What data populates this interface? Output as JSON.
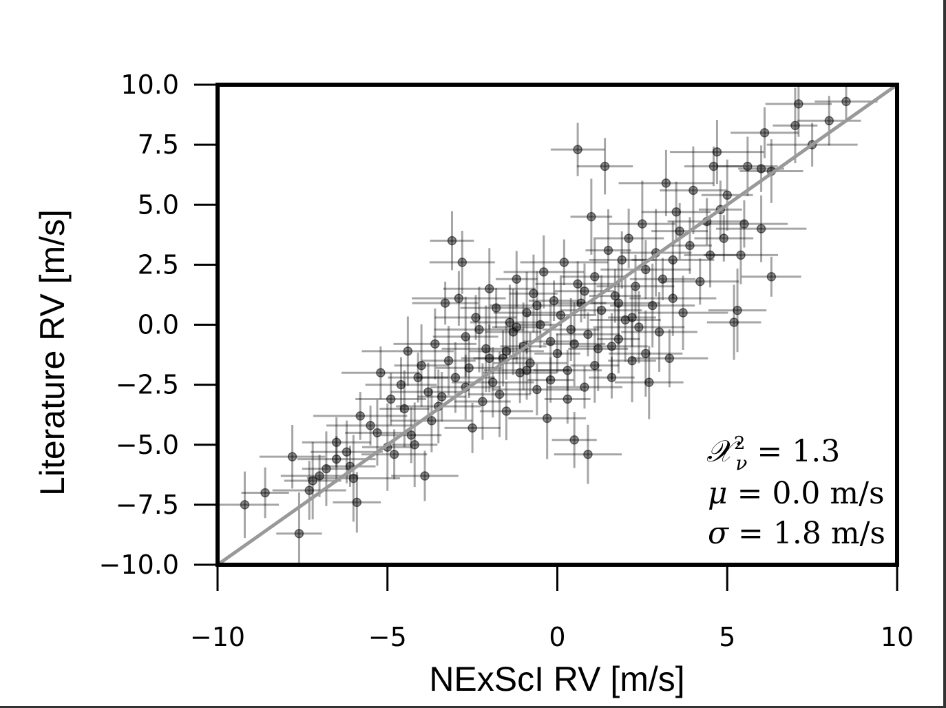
{
  "chart_data": {
    "type": "scatter",
    "title": "",
    "xlabel": "NExScI RV [m/s]",
    "ylabel": "Literature RV [m/s]",
    "xlim": [
      -10,
      10
    ],
    "ylim": [
      -10,
      10
    ],
    "xticks": [
      -10,
      -5,
      0,
      5,
      10
    ],
    "xtick_labels": [
      "−10",
      "−5",
      "0",
      "5",
      "10"
    ],
    "yticks": [
      10,
      7.5,
      5,
      2.5,
      0,
      -2.5,
      -5,
      -7.5,
      -10
    ],
    "ytick_labels": [
      "10.0",
      "7.5",
      "5.0",
      "2.5",
      "0.0",
      "−2.5",
      "−5.0",
      "−7.5",
      "−10.0"
    ],
    "grid": false,
    "reference_line": {
      "type": "y=x",
      "color": "#999999"
    },
    "marker_color": "#000000",
    "stats": {
      "chi2": {
        "symbol": "𝒳",
        "sub": "ν",
        "sup": "2",
        "text": " = 1.3"
      },
      "mu": {
        "symbol": "μ",
        "text": " = 0.0 m/s"
      },
      "sigma": {
        "symbol": "σ",
        "text": " = 1.8 m/s"
      }
    },
    "series": [
      {
        "points": [
          [
            -9.2,
            -7.5
          ],
          [
            -8.6,
            -7.0
          ],
          [
            -7.8,
            -5.5
          ],
          [
            -7.6,
            -8.7
          ],
          [
            -7.3,
            -6.9
          ],
          [
            -7.2,
            -6.5
          ],
          [
            -7.0,
            -6.3
          ],
          [
            -6.5,
            -4.9
          ],
          [
            -6.5,
            -5.6
          ],
          [
            -6.2,
            -5.3
          ],
          [
            -6.1,
            -5.9
          ],
          [
            -6.0,
            -6.4
          ],
          [
            -5.9,
            -7.4
          ],
          [
            -5.8,
            -3.8
          ],
          [
            -5.3,
            -4.5
          ],
          [
            -5.2,
            -2.0
          ],
          [
            -5.0,
            -5.1
          ],
          [
            -4.8,
            -5.4
          ],
          [
            -4.6,
            -2.5
          ],
          [
            -4.5,
            -3.5
          ],
          [
            -4.3,
            -4.6
          ],
          [
            -4.2,
            -5.0
          ],
          [
            -4.0,
            -1.7
          ],
          [
            -3.9,
            -6.3
          ],
          [
            -3.8,
            -2.8
          ],
          [
            -3.6,
            -0.8
          ],
          [
            -3.4,
            -3.0
          ],
          [
            -3.3,
            0.9
          ],
          [
            -3.1,
            3.5
          ],
          [
            -3.0,
            -2.2
          ],
          [
            -2.9,
            1.1
          ],
          [
            -2.8,
            2.6
          ],
          [
            -2.7,
            -0.5
          ],
          [
            -2.6,
            -1.8
          ],
          [
            -2.5,
            -4.3
          ],
          [
            -2.4,
            0.3
          ],
          [
            -2.2,
            -3.2
          ],
          [
            -2.1,
            -1.0
          ],
          [
            -2.0,
            1.5
          ],
          [
            -1.9,
            -2.4
          ],
          [
            -1.8,
            0.7
          ],
          [
            -1.6,
            -1.4
          ],
          [
            -1.5,
            -3.6
          ],
          [
            -1.4,
            0.1
          ],
          [
            -1.3,
            -0.3
          ],
          [
            -1.2,
            1.9
          ],
          [
            -1.1,
            -2.0
          ],
          [
            -1.0,
            -0.9
          ],
          [
            -0.9,
            0.5
          ],
          [
            -0.8,
            -1.6
          ],
          [
            -0.7,
            1.3
          ],
          [
            -0.6,
            -2.7
          ],
          [
            -0.5,
            0.0
          ],
          [
            -0.4,
            2.2
          ],
          [
            -0.3,
            -3.9
          ],
          [
            -0.2,
            -0.7
          ],
          [
            -0.1,
            1.0
          ],
          [
            0.0,
            -1.2
          ],
          [
            0.1,
            0.4
          ],
          [
            0.2,
            2.6
          ],
          [
            0.3,
            -1.9
          ],
          [
            0.4,
            -0.2
          ],
          [
            0.5,
            -4.8
          ],
          [
            0.6,
            7.3
          ],
          [
            0.6,
            1.7
          ],
          [
            0.7,
            0.9
          ],
          [
            0.8,
            -2.6
          ],
          [
            0.9,
            -0.4
          ],
          [
            0.9,
            -5.4
          ],
          [
            1.0,
            4.5
          ],
          [
            1.1,
            2.0
          ],
          [
            1.2,
            -1.0
          ],
          [
            1.3,
            0.6
          ],
          [
            1.4,
            6.6
          ],
          [
            1.5,
            3.1
          ],
          [
            1.6,
            -2.2
          ],
          [
            1.7,
            1.2
          ],
          [
            1.8,
            -0.6
          ],
          [
            1.9,
            2.7
          ],
          [
            2.0,
            0.2
          ],
          [
            2.1,
            3.6
          ],
          [
            2.2,
            -1.5
          ],
          [
            2.3,
            1.6
          ],
          [
            2.4,
            -0.1
          ],
          [
            2.5,
            4.2
          ],
          [
            2.6,
            2.3
          ],
          [
            2.7,
            -2.4
          ],
          [
            2.8,
            0.8
          ],
          [
            2.9,
            3.0
          ],
          [
            3.0,
            -0.3
          ],
          [
            3.1,
            1.9
          ],
          [
            3.2,
            5.9
          ],
          [
            3.3,
            -1.4
          ],
          [
            3.4,
            2.7
          ],
          [
            3.5,
            4.7
          ],
          [
            3.7,
            0.5
          ],
          [
            3.9,
            3.3
          ],
          [
            4.0,
            5.6
          ],
          [
            4.2,
            1.8
          ],
          [
            4.4,
            4.3
          ],
          [
            4.5,
            2.9
          ],
          [
            4.6,
            6.6
          ],
          [
            4.7,
            7.2
          ],
          [
            4.8,
            4.8
          ],
          [
            5.0,
            5.4
          ],
          [
            5.2,
            0.1
          ],
          [
            5.3,
            0.6
          ],
          [
            5.4,
            2.9
          ],
          [
            5.5,
            4.2
          ],
          [
            5.6,
            6.6
          ],
          [
            6.0,
            4.0
          ],
          [
            6.0,
            6.5
          ],
          [
            6.1,
            8.0
          ],
          [
            6.3,
            6.4
          ],
          [
            6.3,
            2.0
          ],
          [
            7.0,
            8.3
          ],
          [
            7.1,
            9.2
          ],
          [
            7.5,
            7.5
          ],
          [
            8.0,
            8.5
          ],
          [
            8.5,
            9.3
          ],
          [
            -6.8,
            -6.0
          ],
          [
            -5.5,
            -4.2
          ],
          [
            -4.9,
            -3.1
          ],
          [
            -4.1,
            -2.2
          ],
          [
            -3.7,
            -4.0
          ],
          [
            -3.2,
            -1.5
          ],
          [
            -2.3,
            -0.2
          ],
          [
            -1.7,
            -2.9
          ],
          [
            -0.9,
            -1.9
          ],
          [
            0.3,
            -3.1
          ],
          [
            1.1,
            -1.7
          ],
          [
            2.6,
            -1.2
          ],
          [
            3.6,
            3.9
          ],
          [
            4.9,
            3.6
          ],
          [
            -4.4,
            -1.1
          ],
          [
            -3.5,
            -3.4
          ],
          [
            -2.0,
            -1.4
          ],
          [
            -1.2,
            -0.1
          ],
          [
            -0.6,
            0.8
          ],
          [
            0.8,
            1.4
          ],
          [
            1.6,
            -0.9
          ],
          [
            2.2,
            0.3
          ],
          [
            3.4,
            1.1
          ],
          [
            -2.7,
            -2.6
          ],
          [
            -1.5,
            -1.1
          ],
          [
            -0.2,
            -2.3
          ],
          [
            0.5,
            -0.8
          ],
          [
            1.8,
            0.9
          ]
        ]
      }
    ]
  }
}
